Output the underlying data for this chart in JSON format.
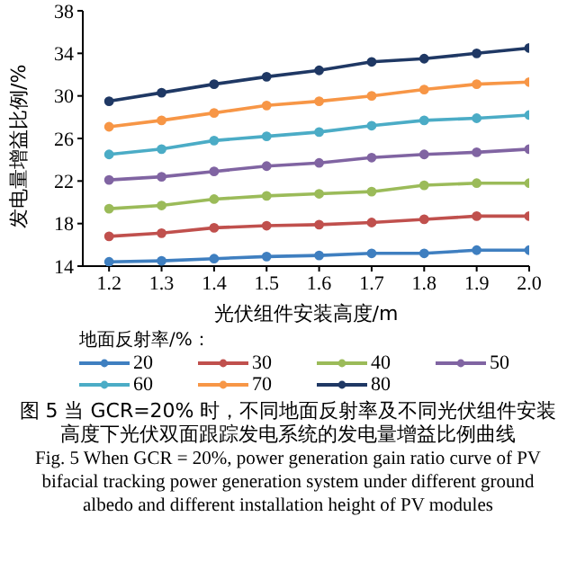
{
  "chart_data": {
    "type": "line",
    "xlabel": "光伏组件安装高度/m",
    "ylabel": "发电量增益比例/%",
    "legend_title": "地面反射率/%：",
    "x": [
      1.2,
      1.3,
      1.4,
      1.5,
      1.6,
      1.7,
      1.8,
      1.9,
      2.0
    ],
    "xlim": [
      1.15,
      2.0
    ],
    "xticks": [
      1.2,
      1.3,
      1.4,
      1.5,
      1.6,
      1.7,
      1.8,
      1.9,
      {
        "value": 2.0,
        "label": "2.0"
      }
    ],
    "ylim": [
      14,
      38
    ],
    "yticks": [
      14,
      18,
      22,
      26,
      30,
      34,
      38
    ],
    "grid": false,
    "legend": "bottom",
    "marker": "circle",
    "line_style": "solid",
    "series": [
      {
        "name": "20",
        "color": "#3f7fc0",
        "values": [
          14.4,
          14.5,
          14.7,
          14.9,
          15.0,
          15.2,
          15.2,
          15.5,
          15.5
        ]
      },
      {
        "name": "30",
        "color": "#c0504d",
        "values": [
          16.8,
          17.1,
          17.6,
          17.8,
          17.9,
          18.1,
          18.4,
          18.7,
          18.7
        ]
      },
      {
        "name": "40",
        "color": "#9bbb59",
        "values": [
          19.4,
          19.7,
          20.3,
          20.6,
          20.8,
          21.0,
          21.6,
          21.8,
          21.8
        ]
      },
      {
        "name": "50",
        "color": "#8064a2",
        "values": [
          22.1,
          22.4,
          22.9,
          23.4,
          23.7,
          24.2,
          24.5,
          24.7,
          25.0
        ]
      },
      {
        "name": "60",
        "color": "#4bacc6",
        "values": [
          24.5,
          25.0,
          25.8,
          26.2,
          26.6,
          27.2,
          27.7,
          27.9,
          28.2
        ]
      },
      {
        "name": "70",
        "color": "#f79646",
        "values": [
          27.1,
          27.7,
          28.4,
          29.1,
          29.5,
          30.0,
          30.6,
          31.1,
          31.3
        ]
      },
      {
        "name": "80",
        "color": "#1f3864",
        "values": [
          29.5,
          30.3,
          31.1,
          31.8,
          32.4,
          33.2,
          33.5,
          34.0,
          34.5
        ]
      }
    ],
    "annotations": [
      "图 5 当 GCR=20% 时，不同地面反射率及不同光伏组件安装高度下光伏双面跟踪发电系统的发电量增益比例曲线",
      "Fig. 5 When GCR = 20%, power generation gain ratio curve of PV bifacial tracking power generation system under different ground albedo and different installation height of PV modules"
    ]
  }
}
